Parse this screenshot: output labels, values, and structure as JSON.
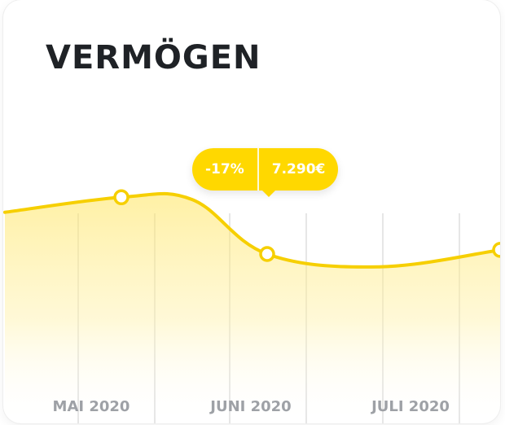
{
  "card": {
    "title": "VERMÖGEN"
  },
  "tooltip": {
    "change": "-17%",
    "value": "7.290€"
  },
  "colors": {
    "accent": "#ffd800",
    "line": "#f6cf00",
    "grid": "#e6e6e6",
    "label": "#9ea1a6"
  },
  "chart_data": {
    "type": "area",
    "title": "VERMÖGEN",
    "x_tick_labels": [
      "MAI 2020",
      "JUNI 2020",
      "JULI 2020"
    ],
    "series": [
      {
        "values": [
          8400,
          8800,
          8740,
          7290,
          6950,
          7400
        ]
      }
    ],
    "markers": [
      1,
      3,
      5
    ],
    "grid": {
      "vertical": true,
      "horizontal": false
    }
  }
}
